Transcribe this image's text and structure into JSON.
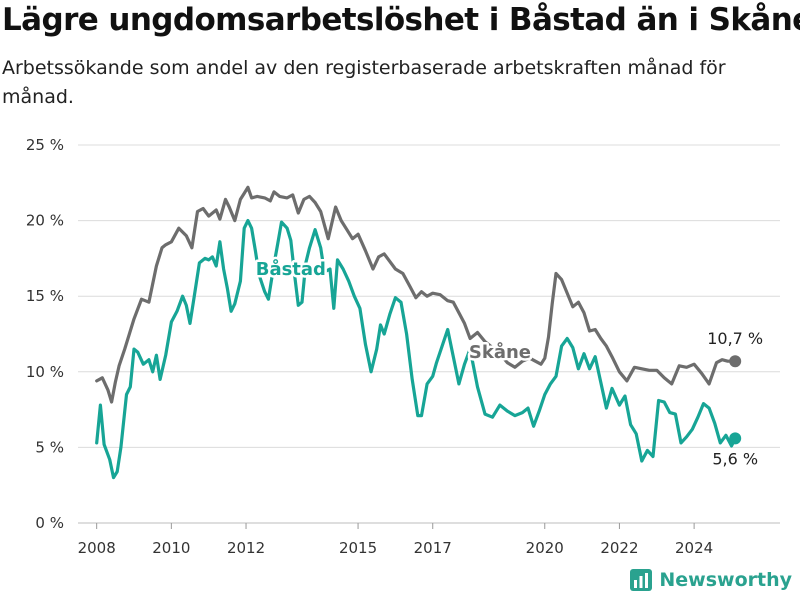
{
  "title": "Lägre ungdomsarbetslöshet i Båstad än i Skåne",
  "subtitle": "Arbetssökande som andel av den registerbaserade arbetskraften månad för månad.",
  "brand": "Newsworthy",
  "colors": {
    "skane": "#6d6d6d",
    "bastad": "#17a596",
    "grid": "#dcdcdc",
    "axis_text": "#333333",
    "brand": "#2aa28f"
  },
  "chart_data": {
    "type": "line",
    "ylim": [
      0,
      25
    ],
    "y_ticks": [
      0,
      5,
      10,
      15,
      20,
      25
    ],
    "y_tick_labels": [
      "0 %",
      "5 %",
      "10 %",
      "15 %",
      "20 %",
      "25 %"
    ],
    "x_range": [
      2007.5,
      2026.3
    ],
    "x_ticks": [
      2008,
      2010,
      2012,
      2015,
      2017,
      2020,
      2022,
      2024
    ],
    "x_tick_labels": [
      "2008",
      "2010",
      "2012",
      "2015",
      "2017",
      "2020",
      "2022",
      "2024"
    ],
    "grid": "horizontal",
    "series": [
      {
        "name": "Skåne",
        "label_x": 2018.8,
        "label_y": 10.9,
        "end_label": "10,7 %",
        "x": [
          2008.0,
          2008.15,
          2008.3,
          2008.4,
          2008.5,
          2008.6,
          2008.75,
          2009.0,
          2009.2,
          2009.4,
          2009.6,
          2009.75,
          2009.85,
          2010.0,
          2010.2,
          2010.4,
          2010.55,
          2010.7,
          2010.85,
          2011.0,
          2011.2,
          2011.3,
          2011.45,
          2011.55,
          2011.7,
          2011.85,
          2011.95,
          2012.05,
          2012.15,
          2012.3,
          2012.5,
          2012.65,
          2012.75,
          2012.9,
          2013.1,
          2013.25,
          2013.4,
          2013.55,
          2013.7,
          2013.85,
          2014.0,
          2014.2,
          2014.4,
          2014.55,
          2014.7,
          2014.85,
          2015.0,
          2015.2,
          2015.4,
          2015.55,
          2015.7,
          2015.85,
          2016.0,
          2016.2,
          2016.4,
          2016.55,
          2016.7,
          2016.85,
          2017.0,
          2017.2,
          2017.4,
          2017.55,
          2017.7,
          2017.85,
          2018.0,
          2018.2,
          2018.4,
          2018.6,
          2018.8,
          2019.0,
          2019.2,
          2019.4,
          2019.6,
          2019.75,
          2019.9,
          2020.0,
          2020.1,
          2020.2,
          2020.3,
          2020.45,
          2020.6,
          2020.75,
          2020.9,
          2021.05,
          2021.2,
          2021.35,
          2021.5,
          2021.65,
          2021.8,
          2022.0,
          2022.2,
          2022.4,
          2022.6,
          2022.8,
          2023.0,
          2023.2,
          2023.4,
          2023.6,
          2023.8,
          2024.0,
          2024.2,
          2024.4,
          2024.6,
          2024.75,
          2024.9,
          2025.1
        ],
        "values": [
          9.4,
          9.6,
          8.8,
          8.0,
          9.3,
          10.4,
          11.5,
          13.5,
          14.8,
          14.6,
          17.0,
          18.2,
          18.4,
          18.6,
          19.5,
          19.0,
          18.2,
          20.6,
          20.8,
          20.3,
          20.7,
          20.1,
          21.4,
          20.9,
          20.0,
          21.4,
          21.8,
          22.2,
          21.5,
          21.6,
          21.5,
          21.3,
          21.9,
          21.6,
          21.5,
          21.7,
          20.5,
          21.4,
          21.6,
          21.2,
          20.6,
          18.8,
          20.9,
          20.0,
          19.4,
          18.8,
          19.1,
          18.0,
          16.8,
          17.6,
          17.8,
          17.3,
          16.8,
          16.5,
          15.6,
          14.9,
          15.3,
          15.0,
          15.2,
          15.1,
          14.7,
          14.6,
          13.9,
          13.2,
          12.2,
          12.6,
          12.0,
          11.6,
          11.2,
          10.6,
          10.3,
          10.7,
          10.9,
          10.7,
          10.5,
          10.9,
          12.3,
          14.5,
          16.5,
          16.1,
          15.2,
          14.3,
          14.6,
          13.9,
          12.7,
          12.8,
          12.2,
          11.7,
          11.0,
          10.0,
          9.4,
          10.3,
          10.2,
          10.1,
          10.1,
          9.6,
          9.2,
          10.4,
          10.3,
          10.5,
          9.9,
          9.2,
          10.6,
          10.8,
          10.7,
          10.7
        ]
      },
      {
        "name": "Båstad",
        "label_x": 2013.2,
        "label_y": 16.4,
        "end_label": "5,6 %",
        "x": [
          2008.0,
          2008.1,
          2008.2,
          2008.35,
          2008.45,
          2008.55,
          2008.65,
          2008.8,
          2008.9,
          2009.0,
          2009.1,
          2009.25,
          2009.4,
          2009.5,
          2009.6,
          2009.7,
          2009.85,
          2010.0,
          2010.15,
          2010.3,
          2010.4,
          2010.5,
          2010.6,
          2010.75,
          2010.9,
          2011.0,
          2011.1,
          2011.2,
          2011.3,
          2011.4,
          2011.5,
          2011.6,
          2011.7,
          2011.85,
          2011.95,
          2012.05,
          2012.15,
          2012.25,
          2012.35,
          2012.5,
          2012.6,
          2012.75,
          2012.85,
          2012.95,
          2013.1,
          2013.2,
          2013.3,
          2013.4,
          2013.5,
          2013.6,
          2013.7,
          2013.85,
          2014.0,
          2014.1,
          2014.25,
          2014.35,
          2014.45,
          2014.6,
          2014.75,
          2014.9,
          2015.05,
          2015.2,
          2015.35,
          2015.5,
          2015.6,
          2015.7,
          2015.85,
          2016.0,
          2016.15,
          2016.3,
          2016.45,
          2016.6,
          2016.7,
          2016.85,
          2017.0,
          2017.1,
          2017.25,
          2017.4,
          2017.55,
          2017.7,
          2017.85,
          2018.0,
          2018.2,
          2018.4,
          2018.6,
          2018.8,
          2019.0,
          2019.2,
          2019.4,
          2019.55,
          2019.7,
          2019.85,
          2020.0,
          2020.15,
          2020.3,
          2020.45,
          2020.6,
          2020.75,
          2020.9,
          2021.05,
          2021.2,
          2021.35,
          2021.5,
          2021.65,
          2021.8,
          2022.0,
          2022.15,
          2022.3,
          2022.45,
          2022.6,
          2022.75,
          2022.9,
          2023.05,
          2023.2,
          2023.35,
          2023.5,
          2023.65,
          2023.8,
          2023.95,
          2024.1,
          2024.25,
          2024.4,
          2024.55,
          2024.7,
          2024.85,
          2025.0,
          2025.1
        ],
        "values": [
          5.3,
          7.8,
          5.2,
          4.2,
          3.0,
          3.4,
          5.0,
          8.5,
          9.0,
          11.5,
          11.3,
          10.5,
          10.8,
          10.0,
          11.1,
          9.5,
          11.1,
          13.3,
          14.0,
          15.0,
          14.4,
          13.2,
          14.8,
          17.2,
          17.5,
          17.4,
          17.6,
          17.0,
          18.6,
          16.8,
          15.5,
          14.0,
          14.5,
          16.0,
          19.5,
          20.0,
          19.5,
          18.0,
          16.4,
          15.3,
          14.8,
          17.1,
          18.5,
          19.9,
          19.5,
          18.7,
          16.4,
          14.4,
          14.6,
          17.2,
          18.2,
          19.4,
          18.2,
          16.6,
          16.8,
          14.2,
          17.4,
          16.8,
          16.0,
          15.0,
          14.2,
          11.8,
          10.0,
          11.5,
          13.1,
          12.5,
          13.8,
          14.9,
          14.6,
          12.5,
          9.5,
          7.1,
          7.1,
          9.2,
          9.7,
          10.6,
          11.7,
          12.8,
          11.0,
          9.2,
          10.5,
          11.5,
          9.0,
          7.2,
          7.0,
          7.8,
          7.4,
          7.1,
          7.3,
          7.6,
          6.4,
          7.4,
          8.5,
          9.2,
          9.7,
          11.7,
          12.2,
          11.6,
          10.2,
          11.2,
          10.2,
          11.0,
          9.3,
          7.6,
          8.9,
          7.8,
          8.4,
          6.5,
          5.9,
          4.1,
          4.8,
          4.4,
          8.1,
          8.0,
          7.3,
          7.2,
          5.3,
          5.7,
          6.2,
          7.0,
          7.9,
          7.6,
          6.6,
          5.3,
          5.8,
          5.1,
          5.6
        ]
      }
    ]
  }
}
